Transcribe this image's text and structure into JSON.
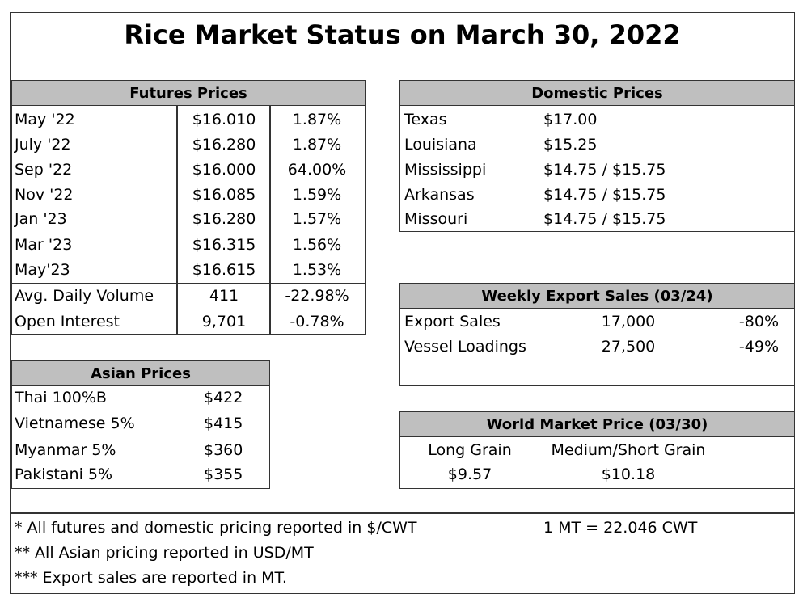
{
  "title": "Rice Market Status on March 30, 2022",
  "futures": {
    "header": "Futures Prices",
    "rows": [
      [
        "May '22",
        "$16.010",
        "1.87%"
      ],
      [
        "July '22",
        "$16.280",
        "1.87%"
      ],
      [
        "Sep '22",
        "$16.000",
        "64.00%"
      ],
      [
        "Nov '22",
        "$16.085",
        "1.59%"
      ],
      [
        "Jan '23",
        "$16.280",
        "1.57%"
      ],
      [
        "Mar '23",
        "$16.315",
        "1.56%"
      ],
      [
        "May'23",
        "$16.615",
        "1.53%"
      ],
      [
        "Avg. Daily Volume",
        "411",
        "-22.98%"
      ],
      [
        "Open Interest",
        "9,701",
        "-0.78%"
      ]
    ]
  },
  "domestic": {
    "header": "Domestic Prices",
    "rows": [
      [
        "Texas",
        "$17.00"
      ],
      [
        "Louisiana",
        "$15.25"
      ],
      [
        "Mississippi",
        "$14.75 / $15.75"
      ],
      [
        "Arkansas",
        "$14.75 / $15.75"
      ],
      [
        "Missouri",
        "$14.75 / $15.75"
      ]
    ]
  },
  "weekly_export": {
    "header": "Weekly Export Sales (03/24)",
    "rows": [
      [
        "Export Sales",
        "17,000",
        "-80%"
      ],
      [
        "Vessel Loadings",
        "27,500",
        "-49%"
      ]
    ]
  },
  "asian": {
    "header": "Asian Prices",
    "rows": [
      [
        "Thai 100%B",
        "$422"
      ],
      [
        "Vietnamese 5%",
        "$415"
      ],
      [
        "Myanmar 5%",
        "$360"
      ],
      [
        "Pakistani 5%",
        "$355"
      ]
    ]
  },
  "world": {
    "header": "World Market Price (03/30)",
    "columns": [
      "Long Grain",
      "Medium/Short Grain"
    ],
    "values": [
      "$9.57",
      "$10.18"
    ]
  },
  "notes": [
    "* All futures and domestic pricing reported in $/CWT",
    "** All Asian pricing reported in USD/MT",
    "*** Export sales are reported in MT."
  ],
  "conversion": "1 MT = 22.046 CWT"
}
